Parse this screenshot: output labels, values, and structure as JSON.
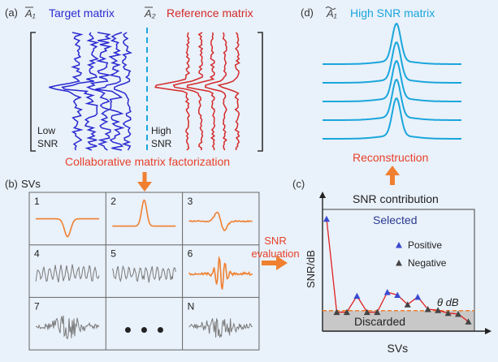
{
  "panel_a": {
    "label": "(a)",
    "target_symbol": "A₁",
    "target_title": "Target matrix",
    "reference_symbol": "A₂",
    "reference_title": "Reference matrix",
    "low_snr_line1": "Low",
    "low_snr_line2": "SNR",
    "high_snr_line1": "High",
    "high_snr_line2": "SNR",
    "factorization_label": "Collaborative matrix factorization"
  },
  "panel_b": {
    "label": "(b)",
    "title": "SVs",
    "cells": [
      {
        "index": "1",
        "kind": "dip"
      },
      {
        "index": "2",
        "kind": "peak"
      },
      {
        "index": "3",
        "kind": "dispersive"
      },
      {
        "index": "4",
        "kind": "noise"
      },
      {
        "index": "5",
        "kind": "noise"
      },
      {
        "index": "6",
        "kind": "burst"
      },
      {
        "index": "7",
        "kind": "noise-burst"
      },
      {
        "index": "",
        "kind": "ellipsis"
      },
      {
        "index": "N",
        "kind": "noise-burst"
      }
    ]
  },
  "panel_c": {
    "label": "(c)",
    "title": "SNR contribution",
    "ylabel": "SNR/dB",
    "xlabel": "SVs",
    "selected_label": "Selected",
    "discarded_label": "Discarded",
    "threshold_label": "θ dB",
    "legend_positive": "Positive",
    "legend_negative": "Negative",
    "evaluation_line1": "SNR",
    "evaluation_line2": "evaluation"
  },
  "panel_d": {
    "label": "(d)",
    "symbol": "A₁",
    "title": "High SNR matrix",
    "reconstruction_label": "Reconstruction"
  },
  "colors": {
    "target": "#2a2ad0",
    "reference": "#d42a2a",
    "highsnr": "#1aa6dc",
    "orange": "#f08030",
    "red_text": "#e8402a",
    "grey_trace": "#7a7a7a",
    "marker": "#3a4ad0",
    "marker_neg": "#444444"
  },
  "chart_data": {
    "type": "line",
    "title": "SNR contribution",
    "xlabel": "SVs",
    "ylabel": "SNR/dB",
    "threshold": "θ",
    "series": [
      {
        "name": "Positive",
        "x": [
          1,
          4,
          7,
          8,
          10
        ],
        "y": [
          10.5,
          2.4,
          2.8,
          2.5,
          2.3
        ]
      },
      {
        "name": "Negative",
        "x": [
          2,
          3,
          5,
          6,
          9,
          11,
          12,
          13,
          14,
          15
        ],
        "y": [
          0.7,
          0.7,
          0.7,
          0.7,
          1.5,
          1.0,
          0.9,
          0.6,
          0.5,
          -0.3
        ]
      }
    ],
    "line": {
      "x": [
        1,
        2,
        3,
        4,
        5,
        6,
        7,
        8,
        9,
        10,
        11,
        12,
        13,
        14,
        15
      ],
      "y": [
        10.5,
        0.7,
        0.7,
        2.4,
        0.7,
        0.7,
        2.8,
        2.5,
        1.5,
        2.3,
        1.0,
        0.9,
        0.6,
        0.5,
        -0.3
      ]
    },
    "threshold_value": 0.85
  }
}
